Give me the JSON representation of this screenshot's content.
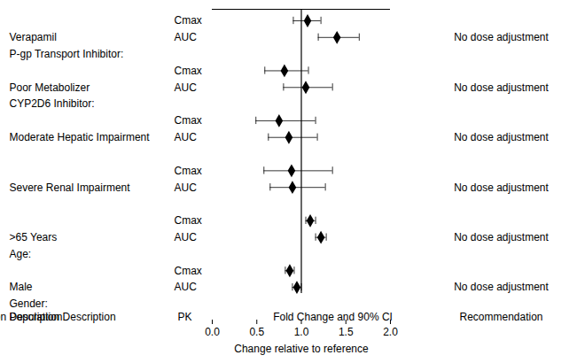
{
  "chart_data": {
    "type": "forest",
    "headers": {
      "population": "Population Description",
      "pk": "PK",
      "plot": "Fold Change and 90% CI",
      "recommendation": "Recommendation"
    },
    "x_label": "Change relative to reference",
    "xlim": [
      0,
      2
    ],
    "xticks": [
      {
        "value": 0,
        "label": "0.0"
      },
      {
        "value": 0.5,
        "label": "0.5"
      },
      {
        "value": 1,
        "label": "1.0"
      },
      {
        "value": 1.5,
        "label": "1.5"
      },
      {
        "value": 2,
        "label": "2.0"
      }
    ],
    "reference": 1,
    "marker": "diamond",
    "color": "#000000",
    "groups": [
      {
        "heading": "Gender:",
        "name": "Male",
        "recommendation": "No dose adjustment",
        "rows": [
          {
            "pk": "AUC",
            "value": 0.95,
            "ci": [
              0.9,
              1.0
            ]
          },
          {
            "pk": "Cmax",
            "value": 0.87,
            "ci": [
              0.82,
              0.92
            ]
          }
        ]
      },
      {
        "heading": "Age:",
        "name": ">65 Years",
        "recommendation": "No dose adjustment",
        "rows": [
          {
            "pk": "AUC",
            "value": 1.22,
            "ci": [
              1.16,
              1.28
            ]
          },
          {
            "pk": "Cmax",
            "value": 1.1,
            "ci": [
              1.05,
              1.16
            ]
          }
        ]
      },
      {
        "name": "Severe Renal Impairment",
        "recommendation": "No dose adjustment",
        "rows": [
          {
            "pk": "AUC",
            "value": 0.9,
            "ci": [
              0.65,
              1.27
            ]
          },
          {
            "pk": "Cmax",
            "value": 0.89,
            "ci": [
              0.58,
              1.35
            ]
          }
        ]
      },
      {
        "name": "Moderate Hepatic Impairment",
        "recommendation": "No dose adjustment",
        "rows": [
          {
            "pk": "AUC",
            "value": 0.86,
            "ci": [
              0.63,
              1.18
            ]
          },
          {
            "pk": "Cmax",
            "value": 0.75,
            "ci": [
              0.49,
              1.16
            ]
          }
        ]
      },
      {
        "heading": "CYP2D6 Inhibitor:",
        "name": "Poor Metabolizer",
        "recommendation": "No dose adjustment",
        "rows": [
          {
            "pk": "AUC",
            "value": 1.05,
            "ci": [
              0.8,
              1.35
            ]
          },
          {
            "pk": "Cmax",
            "value": 0.81,
            "ci": [
              0.59,
              1.08
            ]
          }
        ]
      },
      {
        "heading": "P-gp Transport Inhibitor:",
        "name": "Verapamil",
        "recommendation": "No dose adjustment",
        "rows": [
          {
            "pk": "AUC",
            "value": 1.4,
            "ci": [
              1.19,
              1.65
            ]
          },
          {
            "pk": "Cmax",
            "value": 1.07,
            "ci": [
              0.91,
              1.22
            ]
          }
        ]
      }
    ]
  }
}
